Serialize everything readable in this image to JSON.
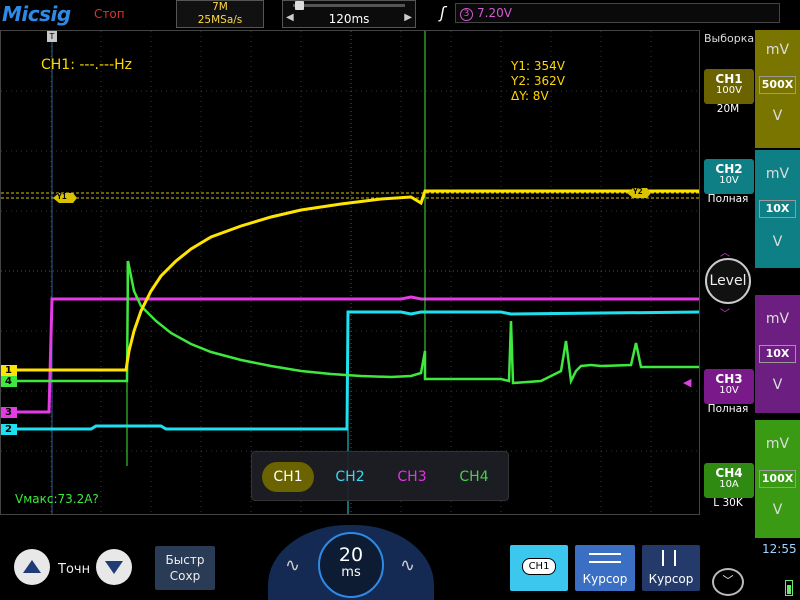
{
  "top": {
    "logo": "Micsig",
    "run_state": "Стоп",
    "memory_depth": "7M",
    "sample_rate": "25MSa/s",
    "timebase_position": "120ms",
    "trigger_channel": "3",
    "trigger_level": "7.20V"
  },
  "screen": {
    "frequency": "CH1: ---.---Hz",
    "cursor_y1": "Y1:  354V",
    "cursor_y2": "Y2:  362V",
    "cursor_dy": "ΔY:  8V",
    "cursor_marker_y1": "Y1",
    "cursor_marker_y2": "Y2",
    "measurement": "Vмакс:73.2A?",
    "channel_markers": [
      "1",
      "4",
      "3",
      "2"
    ]
  },
  "channel_select": {
    "items": [
      "CH1",
      "CH2",
      "CH3",
      "CH4"
    ],
    "active": "CH1"
  },
  "right_panel": {
    "selection_label": "Выборка",
    "channels": [
      {
        "name": "CH1",
        "scale": "100V",
        "sub": "20M",
        "color": "#6b6300"
      },
      {
        "name": "CH2",
        "scale": "10V",
        "sub": "Полная",
        "color": "#0f7f86"
      },
      {
        "name": "CH3",
        "scale": "10V",
        "sub": "Полная",
        "color": "#7a1a8a"
      },
      {
        "name": "CH4",
        "scale": "10A",
        "sub": "L 30K",
        "color": "#2e8a10"
      }
    ],
    "knobs": [
      {
        "top": "mV",
        "mid": "500X",
        "bot": "V",
        "color": "#7a7400"
      },
      {
        "top": "mV",
        "mid": "10X",
        "bot": "V",
        "color": "#0f7f86"
      },
      {
        "top": "mV",
        "mid": "10X",
        "bot": "V",
        "color": "#6c1f80"
      },
      {
        "top": "mV",
        "mid": "100X",
        "bot": "V",
        "color": "#3a9a14"
      }
    ],
    "level_label": "Level",
    "clock": "12:55"
  },
  "bottom": {
    "touch_label": "Точн",
    "save_label_1": "Быстр",
    "save_label_2": "Сохр",
    "timebase_value": "20",
    "timebase_unit": "ms",
    "ch_button_label": "CH1",
    "cursor_h_label": "Курсор",
    "cursor_v_label": "Курсор"
  },
  "colors": {
    "ch1": "#ffe400",
    "ch2": "#1ee0f0",
    "ch3": "#e43ce4",
    "ch4": "#3ee83e",
    "accent": "#2e8ae6"
  }
}
